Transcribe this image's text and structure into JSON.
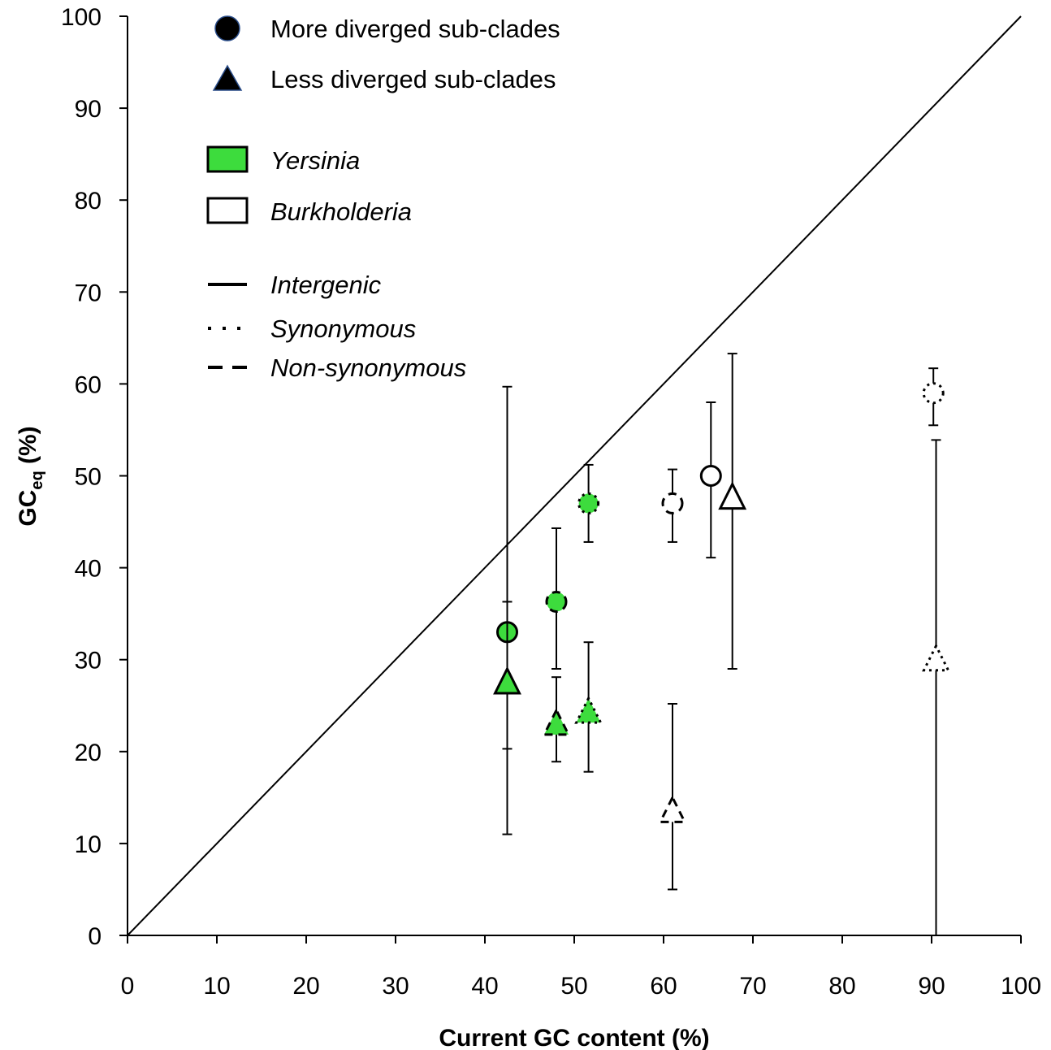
{
  "chart_data": {
    "type": "scatter",
    "title": "",
    "xlabel": "Current GC content (%)",
    "ylabel_main": "GC",
    "ylabel_sub": "eq",
    "ylabel_unit": " (%)",
    "xlim": [
      0,
      100
    ],
    "ylim": [
      0,
      100
    ],
    "xticks": [
      "0",
      "10",
      "20",
      "30",
      "40",
      "50",
      "60",
      "70",
      "80",
      "90",
      "100"
    ],
    "yticks": [
      "0",
      "10",
      "20",
      "30",
      "40",
      "50",
      "60",
      "70",
      "80",
      "90",
      "100"
    ],
    "grid": false,
    "reference_line": {
      "from": [
        0,
        0
      ],
      "to": [
        100,
        100
      ]
    },
    "legend": {
      "placement": "top-left",
      "shapes": [
        {
          "label": "More diverged sub-clades",
          "marker": "circle"
        },
        {
          "label": "Less diverged sub-clades",
          "marker": "triangle"
        }
      ],
      "genera": [
        {
          "label": "Yersinia",
          "fill": "#3ddc3d"
        },
        {
          "label": "Burkholderia",
          "fill": "#ffffff"
        }
      ],
      "line_styles": [
        {
          "label": "Intergenic",
          "style": "solid"
        },
        {
          "label": "Synonymous",
          "style": "dotted"
        },
        {
          "label": "Non-synonymous",
          "style": "dashed"
        }
      ]
    },
    "series": [
      {
        "genus": "Yersinia",
        "site": "Intergenic",
        "marker": "circle",
        "x": 42.5,
        "y": 33,
        "err_low": 20.3,
        "err_high": 36.3
      },
      {
        "genus": "Yersinia",
        "site": "Intergenic",
        "marker": "triangle",
        "x": 42.5,
        "y": 27.5,
        "err_low": 11,
        "err_high": 59.7
      },
      {
        "genus": "Yersinia",
        "site": "Non-synonymous",
        "marker": "circle",
        "x": 48,
        "y": 36.3,
        "err_low": 29,
        "err_high": 44.3
      },
      {
        "genus": "Yersinia",
        "site": "Non-synonymous",
        "marker": "triangle",
        "x": 48,
        "y": 23,
        "err_low": 18.9,
        "err_high": 28.1
      },
      {
        "genus": "Yersinia",
        "site": "Synonymous",
        "marker": "circle",
        "x": 51.6,
        "y": 47,
        "err_low": 42.8,
        "err_high": 51.2
      },
      {
        "genus": "Yersinia",
        "site": "Synonymous",
        "marker": "triangle",
        "x": 51.6,
        "y": 24.3,
        "err_low": 17.8,
        "err_high": 31.9
      },
      {
        "genus": "Burkholderia",
        "site": "Non-synonymous",
        "marker": "circle",
        "x": 61,
        "y": 47,
        "err_low": 42.8,
        "err_high": 50.7
      },
      {
        "genus": "Burkholderia",
        "site": "Non-synonymous",
        "marker": "triangle",
        "x": 61,
        "y": 13.5,
        "err_low": 5,
        "err_high": 25.2
      },
      {
        "genus": "Burkholderia",
        "site": "Intergenic",
        "marker": "circle",
        "x": 65.3,
        "y": 50,
        "err_low": 41.1,
        "err_high": 58
      },
      {
        "genus": "Burkholderia",
        "site": "Intergenic",
        "marker": "triangle",
        "x": 67.7,
        "y": 47.6,
        "err_low": 29,
        "err_high": 63.3
      },
      {
        "genus": "Burkholderia",
        "site": "Synonymous",
        "marker": "circle",
        "x": 90.2,
        "y": 59,
        "err_low": 55.5,
        "err_high": 61.7
      },
      {
        "genus": "Burkholderia",
        "site": "Synonymous",
        "marker": "triangle",
        "x": 90.5,
        "y": 30,
        "err_low": 0,
        "err_high": 53.9
      }
    ]
  }
}
